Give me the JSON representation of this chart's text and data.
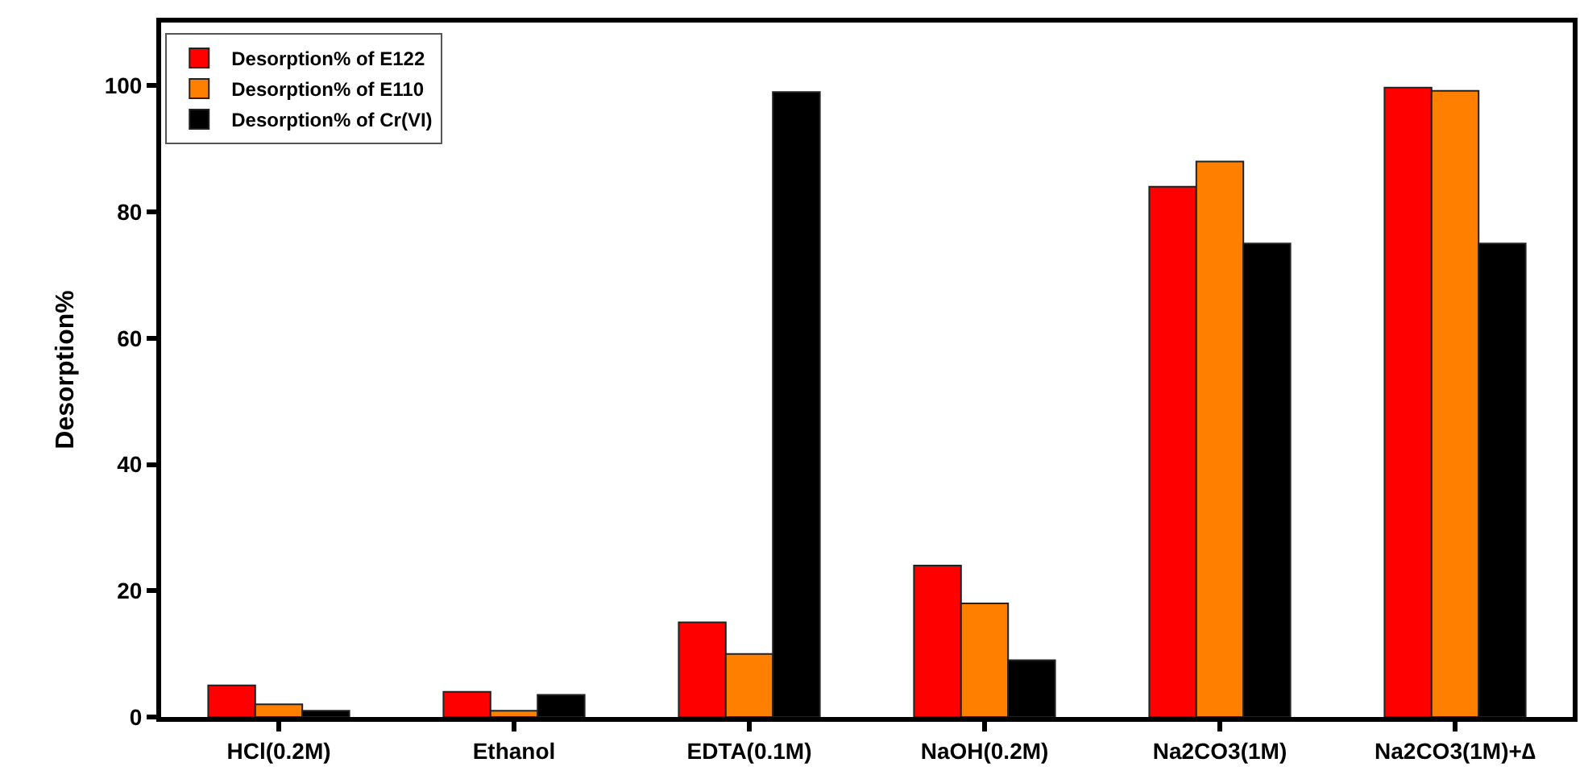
{
  "chart_data": {
    "type": "bar",
    "ylabel": "Desorption%",
    "categories": [
      "HCl(0.2M)",
      "Ethanol",
      "EDTA(0.1M)",
      "NaOH(0.2M)",
      "Na2CO3(1M)",
      "Na2CO3(1M)+∆"
    ],
    "series": [
      {
        "name": "Desorption% of E122",
        "color": "#ff0000",
        "values": [
          5,
          4,
          15,
          24,
          84,
          99.7
        ]
      },
      {
        "name": "Desorption% of E110",
        "color": "#ff8000",
        "values": [
          2,
          1,
          10,
          18,
          88,
          99.2
        ]
      },
      {
        "name": "Desorption% of Cr(VI)",
        "color": "#000000",
        "values": [
          1,
          3.5,
          99,
          9,
          75,
          75
        ]
      }
    ],
    "ylim": [
      0,
      110
    ],
    "yticks": [
      0,
      20,
      40,
      60,
      80,
      100
    ],
    "legend": "top left"
  }
}
